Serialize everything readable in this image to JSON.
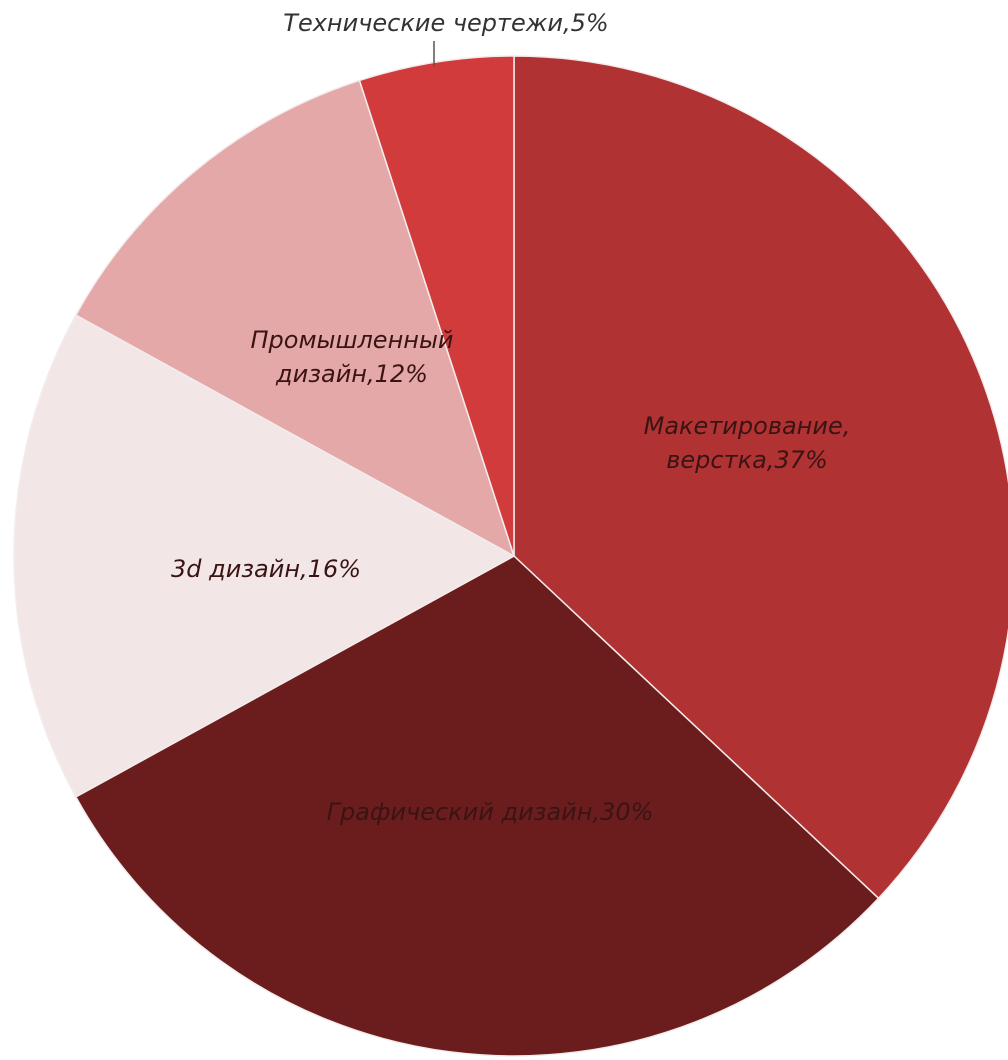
{
  "chart_data": {
    "type": "pie",
    "title": "",
    "slices": [
      {
        "label": "Макетирование, верстка",
        "value": 37,
        "label_lines": [
          "Макетирование,",
          "верстка,37%"
        ],
        "color": "#b03232"
      },
      {
        "label": "Графический дизайн",
        "value": 30,
        "label_lines": [
          "Графический дизайн,30%"
        ],
        "color": "#6b1d1d"
      },
      {
        "label": "3d дизайн",
        "value": 16,
        "label_lines": [
          "3d дизайн,16%"
        ],
        "color": "#f2e6e6"
      },
      {
        "label": "Промышленный дизайн",
        "value": 12,
        "label_lines": [
          "Промышленный",
          "дизайн,12%"
        ],
        "color": "#e4a8a8"
      },
      {
        "label": "Технические чертежи",
        "value": 5,
        "label_lines": [
          "Технические чертежи,5%"
        ],
        "color": "#d23b3b"
      }
    ],
    "legend": "none"
  }
}
